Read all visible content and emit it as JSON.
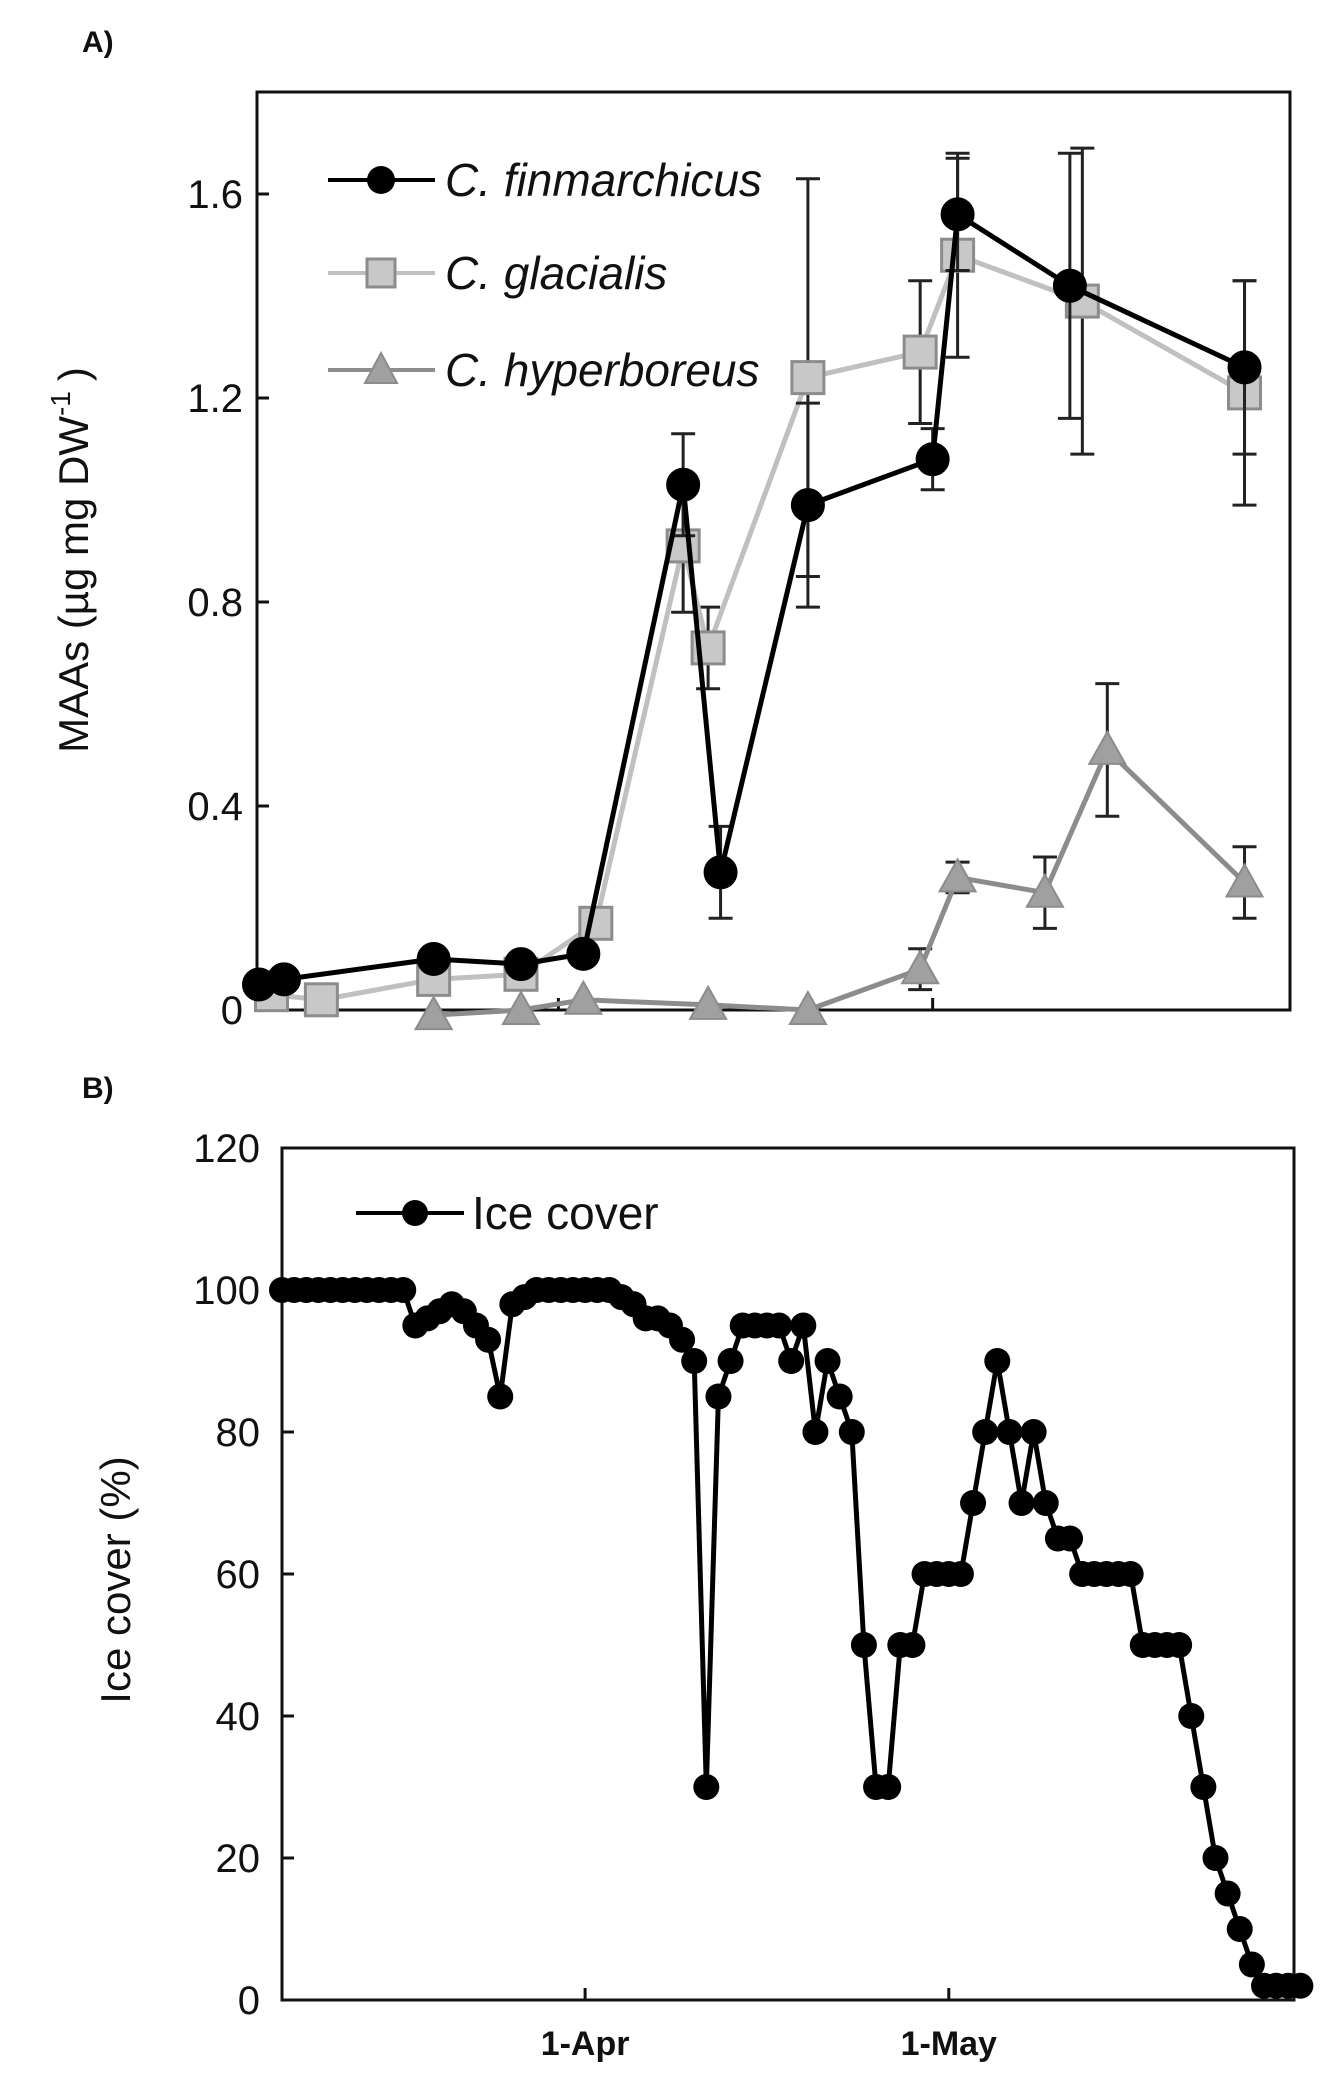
{
  "chart_data": [
    {
      "panel_label": "A)",
      "type": "line",
      "ylabel_main": "MAAs (µg mg DW",
      "ylabel_sup": "-1",
      "ylabel_close": ")",
      "ylim": [
        0,
        1.8
      ],
      "yticks": [
        {
          "value": 0,
          "label": "0"
        },
        {
          "value": 0.4,
          "label": "0.4"
        },
        {
          "value": 0.8,
          "label": "0.8"
        },
        {
          "value": 1.2,
          "label": "1.2"
        },
        {
          "value": 1.6,
          "label": "1.6"
        }
      ],
      "xlim": [
        "2013-03-08",
        "2013-05-27"
      ],
      "xtick_marks": [
        "2013-04-01",
        "2013-05-01"
      ],
      "legend_position": "top-left",
      "series": [
        {
          "name": "C. finmarchicus",
          "color": "#000000",
          "marker": "circle",
          "marker_fill": "#000000",
          "points": [
            {
              "x": "2013-03-08",
              "y": 0.05
            },
            {
              "x": "2013-03-10",
              "y": 0.06
            },
            {
              "x": "2013-03-22",
              "y": 0.1
            },
            {
              "x": "2013-03-29",
              "y": 0.09
            },
            {
              "x": "2013-04-03",
              "y": 0.11
            },
            {
              "x": "2013-04-11",
              "y": 1.03,
              "err": 0.1
            },
            {
              "x": "2013-04-14",
              "y": 0.27,
              "err": 0.09
            },
            {
              "x": "2013-04-21",
              "y": 0.99,
              "err": 0.2
            },
            {
              "x": "2013-05-01",
              "y": 1.08,
              "err": 0.06
            },
            {
              "x": "2013-05-03",
              "y": 1.56,
              "err": 0.11
            },
            {
              "x": "2013-05-12",
              "y": 1.42,
              "err": 0.26
            },
            {
              "x": "2013-05-26",
              "y": 1.26,
              "err": 0.17
            }
          ]
        },
        {
          "name": "C. glacialis",
          "color": "#c0c0c0",
          "marker": "square",
          "marker_fill": "#c8c8c8",
          "points": [
            {
              "x": "2013-03-09",
              "y": 0.03
            },
            {
              "x": "2013-03-13",
              "y": 0.02
            },
            {
              "x": "2013-03-22",
              "y": 0.06
            },
            {
              "x": "2013-03-29",
              "y": 0.07
            },
            {
              "x": "2013-04-04",
              "y": 0.17
            },
            {
              "x": "2013-04-11",
              "y": 0.91,
              "err": 0.13
            },
            {
              "x": "2013-04-13",
              "y": 0.71,
              "err": 0.08
            },
            {
              "x": "2013-04-21",
              "y": 1.24,
              "err": 0.39
            },
            {
              "x": "2013-04-30",
              "y": 1.29,
              "err": 0.14
            },
            {
              "x": "2013-05-03",
              "y": 1.48,
              "err": 0.2
            },
            {
              "x": "2013-05-13",
              "y": 1.39,
              "err": 0.3
            },
            {
              "x": "2013-05-26",
              "y": 1.21,
              "err": 0.22
            }
          ]
        },
        {
          "name": "C. hyperboreus",
          "color": "#8c8c8c",
          "marker": "triangle",
          "marker_fill": "#a0a0a0",
          "points": [
            {
              "x": "2013-03-22",
              "y": -0.01
            },
            {
              "x": "2013-03-29",
              "y": 0.0
            },
            {
              "x": "2013-04-03",
              "y": 0.02
            },
            {
              "x": "2013-04-13",
              "y": 0.01
            },
            {
              "x": "2013-04-21",
              "y": 0.0
            },
            {
              "x": "2013-04-30",
              "y": 0.08,
              "err": 0.04
            },
            {
              "x": "2013-05-03",
              "y": 0.26,
              "err": 0.03
            },
            {
              "x": "2013-05-10",
              "y": 0.23,
              "err": 0.07
            },
            {
              "x": "2013-05-15",
              "y": 0.51,
              "err": 0.13
            },
            {
              "x": "2013-05-26",
              "y": 0.25,
              "err": 0.07
            }
          ]
        }
      ]
    },
    {
      "panel_label": "B)",
      "type": "line",
      "ylabel": "Ice cover  (%)",
      "ylim": [
        0,
        120
      ],
      "yticks": [
        {
          "value": 0,
          "label": "0"
        },
        {
          "value": 20,
          "label": "20"
        },
        {
          "value": 40,
          "label": "40"
        },
        {
          "value": 60,
          "label": "60"
        },
        {
          "value": 80,
          "label": "80"
        },
        {
          "value": 100,
          "label": "100"
        },
        {
          "value": 120,
          "label": "120"
        }
      ],
      "xlim": [
        "2013-03-07",
        "2013-05-27"
      ],
      "xticks": [
        {
          "x": "2013-04-01",
          "label": "1-Apr"
        },
        {
          "x": "2013-05-01",
          "label": "1-May"
        }
      ],
      "legend_position": "top-left",
      "series": [
        {
          "name": "Ice cover",
          "color": "#000000",
          "marker": "circle",
          "points": [
            {
              "x": "2013-03-07",
              "y": 100
            },
            {
              "x": "2013-03-08",
              "y": 100
            },
            {
              "x": "2013-03-09",
              "y": 100
            },
            {
              "x": "2013-03-10",
              "y": 100
            },
            {
              "x": "2013-03-11",
              "y": 100
            },
            {
              "x": "2013-03-12",
              "y": 100
            },
            {
              "x": "2013-03-13",
              "y": 100
            },
            {
              "x": "2013-03-14",
              "y": 100
            },
            {
              "x": "2013-03-15",
              "y": 100
            },
            {
              "x": "2013-03-16",
              "y": 100
            },
            {
              "x": "2013-03-17",
              "y": 100
            },
            {
              "x": "2013-03-18",
              "y": 95
            },
            {
              "x": "2013-03-19",
              "y": 96
            },
            {
              "x": "2013-03-20",
              "y": 97
            },
            {
              "x": "2013-03-21",
              "y": 98
            },
            {
              "x": "2013-03-22",
              "y": 97
            },
            {
              "x": "2013-03-23",
              "y": 95
            },
            {
              "x": "2013-03-24",
              "y": 93
            },
            {
              "x": "2013-03-25",
              "y": 85
            },
            {
              "x": "2013-03-26",
              "y": 98
            },
            {
              "x": "2013-03-27",
              "y": 99
            },
            {
              "x": "2013-03-28",
              "y": 100
            },
            {
              "x": "2013-03-29",
              "y": 100
            },
            {
              "x": "2013-03-30",
              "y": 100
            },
            {
              "x": "2013-03-31",
              "y": 100
            },
            {
              "x": "2013-04-01",
              "y": 100
            },
            {
              "x": "2013-04-02",
              "y": 100
            },
            {
              "x": "2013-04-03",
              "y": 100
            },
            {
              "x": "2013-04-04",
              "y": 99
            },
            {
              "x": "2013-04-05",
              "y": 98
            },
            {
              "x": "2013-04-06",
              "y": 96
            },
            {
              "x": "2013-04-07",
              "y": 96
            },
            {
              "x": "2013-04-08",
              "y": 95
            },
            {
              "x": "2013-04-09",
              "y": 93
            },
            {
              "x": "2013-04-10",
              "y": 90
            },
            {
              "x": "2013-04-11",
              "y": 30
            },
            {
              "x": "2013-04-12",
              "y": 85
            },
            {
              "x": "2013-04-13",
              "y": 90
            },
            {
              "x": "2013-04-14",
              "y": 95
            },
            {
              "x": "2013-04-15",
              "y": 95
            },
            {
              "x": "2013-04-16",
              "y": 95
            },
            {
              "x": "2013-04-17",
              "y": 95
            },
            {
              "x": "2013-04-18",
              "y": 90
            },
            {
              "x": "2013-04-19",
              "y": 95
            },
            {
              "x": "2013-04-20",
              "y": 80
            },
            {
              "x": "2013-04-21",
              "y": 90
            },
            {
              "x": "2013-04-22",
              "y": 85
            },
            {
              "x": "2013-04-23",
              "y": 80
            },
            {
              "x": "2013-04-24",
              "y": 50
            },
            {
              "x": "2013-04-25",
              "y": 30
            },
            {
              "x": "2013-04-26",
              "y": 30
            },
            {
              "x": "2013-04-27",
              "y": 50
            },
            {
              "x": "2013-04-28",
              "y": 50
            },
            {
              "x": "2013-04-29",
              "y": 60
            },
            {
              "x": "2013-04-30",
              "y": 60
            },
            {
              "x": "2013-05-01",
              "y": 60
            },
            {
              "x": "2013-05-02",
              "y": 60
            },
            {
              "x": "2013-05-03",
              "y": 70
            },
            {
              "x": "2013-05-04",
              "y": 80
            },
            {
              "x": "2013-05-05",
              "y": 90
            },
            {
              "x": "2013-05-06",
              "y": 80
            },
            {
              "x": "2013-05-07",
              "y": 70
            },
            {
              "x": "2013-05-08",
              "y": 80
            },
            {
              "x": "2013-05-09",
              "y": 70
            },
            {
              "x": "2013-05-10",
              "y": 65
            },
            {
              "x": "2013-05-11",
              "y": 65
            },
            {
              "x": "2013-05-12",
              "y": 60
            },
            {
              "x": "2013-05-13",
              "y": 60
            },
            {
              "x": "2013-05-14",
              "y": 60
            },
            {
              "x": "2013-05-15",
              "y": 60
            },
            {
              "x": "2013-05-16",
              "y": 60
            },
            {
              "x": "2013-05-17",
              "y": 50
            },
            {
              "x": "2013-05-18",
              "y": 50
            },
            {
              "x": "2013-05-19",
              "y": 50
            },
            {
              "x": "2013-05-20",
              "y": 50
            },
            {
              "x": "2013-05-21",
              "y": 40
            },
            {
              "x": "2013-05-22",
              "y": 30
            },
            {
              "x": "2013-05-23",
              "y": 20
            },
            {
              "x": "2013-05-24",
              "y": 15
            },
            {
              "x": "2013-05-25",
              "y": 10
            },
            {
              "x": "2013-05-26",
              "y": 5
            },
            {
              "x": "2013-05-27",
              "y": 2
            },
            {
              "x": "2013-05-28",
              "y": 2
            },
            {
              "x": "2013-05-29",
              "y": 2
            },
            {
              "x": "2013-05-30",
              "y": 2
            }
          ]
        }
      ]
    }
  ]
}
